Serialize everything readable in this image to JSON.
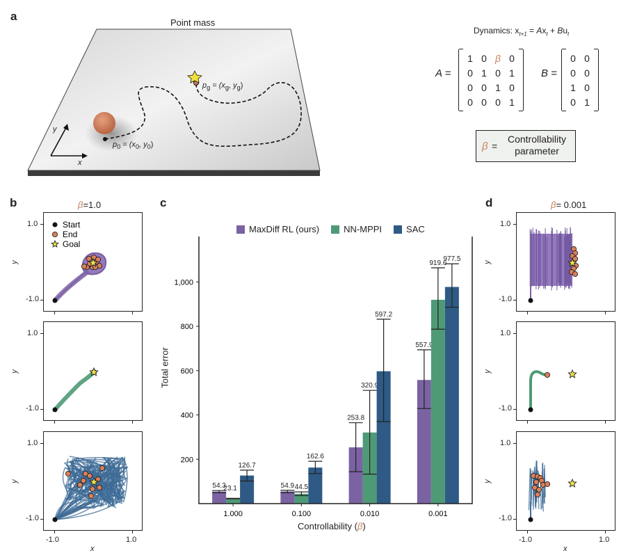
{
  "panel_a": {
    "label": "a",
    "title": "Point mass",
    "axis_y": "y",
    "axis_x": "x",
    "start_label": {
      "p": "p",
      "sub": "0",
      "eq": " = (x",
      "sub2": "0",
      "mid": ", y",
      "sub3": "0",
      "end": ")"
    },
    "goal_label": {
      "p": "p",
      "sub": "g",
      "eq": " = (x",
      "sub2": "g",
      "mid": ", y",
      "sub3": "g",
      "end": ")"
    },
    "dynamics": {
      "label": "Dynamics:",
      "x": "x",
      "t1": "t+1",
      "eq": " = ",
      "A": "A",
      "x2": "x",
      "t": "t",
      "plus": " + ",
      "B": "B",
      "u": "u",
      "t2": "t"
    },
    "matrix_A_label": "A =",
    "matrix_A": [
      [
        "1",
        "0",
        "β",
        "0"
      ],
      [
        "0",
        "1",
        "0",
        "1"
      ],
      [
        "0",
        "0",
        "1",
        "0"
      ],
      [
        "0",
        "0",
        "0",
        "1"
      ]
    ],
    "matrix_B_label": "B =",
    "matrix_B": [
      [
        "0",
        "0"
      ],
      [
        "0",
        "0"
      ],
      [
        "1",
        "0"
      ],
      [
        "0",
        "1"
      ]
    ],
    "beta_box": {
      "symbol": "β",
      "eq": "=",
      "line1": "Controllability",
      "line2": "parameter"
    },
    "colors": {
      "plane": "#e8e8e8",
      "ball": "#c8785a",
      "goal_star": "#f0e040",
      "beta": "#c9805f"
    }
  },
  "panel_b": {
    "label": "b",
    "beta_symbol": "β",
    "beta_value": "=1.0",
    "legend": [
      "Start",
      "End",
      "Goal"
    ],
    "y_ticks": [
      "1.0",
      "-1.0"
    ],
    "x_ticks": [
      "-1.0",
      "1.0"
    ],
    "y_label": "y",
    "x_label": "x"
  },
  "panel_d": {
    "label": "d",
    "beta_symbol": "β",
    "beta_value": "= 0.001",
    "y_ticks": [
      "1.0",
      "-1.0"
    ],
    "x_ticks": [
      "-1.0",
      "1.0"
    ],
    "y_label": "y",
    "x_label": "x"
  },
  "chart_data": {
    "label": "c",
    "type": "bar",
    "categories": [
      "1.000",
      "0.100",
      "0.010",
      "0.001"
    ],
    "series": [
      {
        "name": "MaxDiff RL (ours)",
        "color": "#7b62a3",
        "values": [
          54.3,
          54.9,
          253.8,
          557.9
        ],
        "err_low": [
          49,
          49,
          144,
          429
        ],
        "err_high": [
          59,
          60,
          365,
          694
        ]
      },
      {
        "name": "NN-MPPI",
        "color": "#4f9a76",
        "values": [
          23.1,
          44.5,
          320.9,
          919.6
        ],
        "err_low": [
          22,
          36,
          133,
          787
        ],
        "err_high": [
          24,
          53,
          511,
          1064
        ]
      },
      {
        "name": "SAC",
        "color": "#2e5a85",
        "values": [
          126.7,
          162.6,
          597.2,
          977.5
        ],
        "err_low": [
          102,
          136,
          370,
          886
        ],
        "err_high": [
          151,
          191,
          832,
          1082
        ]
      }
    ],
    "data_labels": [
      [
        "54.3",
        "54.9",
        "253.8",
        "557.9"
      ],
      [
        "23.1",
        "44.5",
        "320.9",
        "919.6"
      ],
      [
        "126.7",
        "162.6",
        "597.2",
        "977.5"
      ]
    ],
    "ylabel": "Total error",
    "xlabel": "Controllability (",
    "xlabel_beta": "β",
    "xlabel_end": ")",
    "yticks": [
      200,
      400,
      600,
      800,
      1000
    ],
    "ytick_labels": [
      "200",
      "400",
      "600",
      "800",
      "1,000"
    ],
    "ylim": [
      0,
      1180
    ],
    "grid": false,
    "legend_position": "top"
  }
}
